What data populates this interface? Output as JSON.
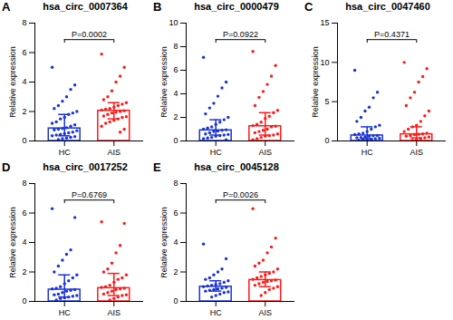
{
  "chart_data": [
    {
      "type": "bar",
      "panel": "A",
      "title": "hsa_circ_0007364",
      "y_label": "Relative expression",
      "categories": [
        "HC",
        "AIS"
      ],
      "values": [
        0.85,
        2.05
      ],
      "colors": [
        "#1a33d6",
        "#ff1a1a"
      ],
      "error_low": [
        0.35,
        1.5
      ],
      "error_high": [
        1.8,
        2.6
      ],
      "points": [
        [
          5.0,
          3.8,
          3.5,
          3.0,
          2.7,
          2.4,
          2.2,
          2.0,
          1.9,
          1.8,
          1.6,
          1.5,
          1.3,
          1.2,
          1.1,
          1.0,
          0.9,
          0.85,
          0.8,
          0.75,
          0.7,
          0.6,
          0.55,
          0.5,
          0.45,
          0.4,
          0.35,
          0.3,
          0.25,
          0.2,
          0.15,
          0.1
        ],
        [
          5.9,
          5.0,
          4.4,
          4.0,
          3.4,
          3.0,
          2.8,
          2.6,
          2.5,
          2.4,
          2.3,
          2.2,
          2.15,
          2.1,
          2.05,
          2.0,
          1.95,
          1.9,
          1.8,
          1.7,
          1.65,
          1.6,
          1.5,
          1.4,
          1.3,
          1.2,
          1.0,
          0.8,
          0.6
        ]
      ],
      "annotation": "P=0.0002",
      "ylim": [
        0,
        8
      ],
      "yticks": [
        0,
        2,
        4,
        6,
        8
      ]
    },
    {
      "type": "bar",
      "panel": "B",
      "title": "hsa_circ_0000479",
      "y_label": "Relative expression",
      "categories": [
        "HC",
        "AIS"
      ],
      "values": [
        0.9,
        1.25
      ],
      "colors": [
        "#1a33d6",
        "#ff1a1a"
      ],
      "error_low": [
        0.5,
        0.5
      ],
      "error_high": [
        1.8,
        2.4
      ],
      "points": [
        [
          7.1,
          5.0,
          4.5,
          3.8,
          3.2,
          2.8,
          2.3,
          2.0,
          1.8,
          1.6,
          1.4,
          1.2,
          1.1,
          1.0,
          0.95,
          0.9,
          0.85,
          0.8,
          0.7,
          0.6,
          0.55,
          0.5,
          0.45,
          0.4,
          0.3,
          0.25,
          0.2,
          0.1
        ],
        [
          7.6,
          6.4,
          5.5,
          4.8,
          4.2,
          3.7,
          3.0,
          2.6,
          2.4,
          2.1,
          1.9,
          1.6,
          1.4,
          1.3,
          1.25,
          1.2,
          1.0,
          0.9,
          0.8,
          0.7,
          0.6,
          0.5,
          0.45,
          0.4,
          0.3,
          0.2,
          0.1
        ]
      ],
      "annotation": "P=0.0922",
      "ylim": [
        0,
        10
      ],
      "yticks": [
        0,
        2,
        4,
        6,
        8,
        10
      ]
    },
    {
      "type": "bar",
      "panel": "C",
      "title": "hsa_circ_0047460",
      "y_label": "Relative expression",
      "categories": [
        "HC",
        "AIS"
      ],
      "values": [
        0.7,
        0.85
      ],
      "colors": [
        "#1a33d6",
        "#ff1a1a"
      ],
      "error_low": [
        0.3,
        0.4
      ],
      "error_high": [
        1.8,
        1.8
      ],
      "points": [
        [
          9.0,
          6.2,
          5.5,
          4.3,
          3.8,
          3.0,
          2.5,
          2.0,
          1.8,
          1.5,
          1.2,
          1.0,
          0.9,
          0.8,
          0.7,
          0.65,
          0.6,
          0.5,
          0.45,
          0.4,
          0.35,
          0.3,
          0.25,
          0.2,
          0.15,
          0.1
        ],
        [
          10.0,
          9.2,
          8.2,
          7.5,
          6.2,
          5.5,
          4.5,
          3.8,
          3.2,
          2.5,
          2.0,
          1.8,
          1.5,
          1.2,
          1.0,
          0.9,
          0.85,
          0.8,
          0.7,
          0.6,
          0.5,
          0.4,
          0.3,
          0.2,
          0.1
        ]
      ],
      "annotation": "P=0.4371",
      "ylim": [
        0,
        15
      ],
      "yticks": [
        0,
        5,
        10,
        15
      ]
    },
    {
      "type": "bar",
      "panel": "D",
      "title": "hsa_circ_0017252",
      "y_label": "Relative expression",
      "categories": [
        "HC",
        "AIS"
      ],
      "values": [
        0.8,
        0.9
      ],
      "colors": [
        "#1a33d6",
        "#ff1a1a"
      ],
      "error_low": [
        0.3,
        0.4
      ],
      "error_high": [
        1.8,
        1.9
      ],
      "points": [
        [
          6.3,
          5.7,
          3.5,
          3.2,
          2.8,
          2.4,
          2.0,
          1.8,
          1.6,
          1.4,
          1.2,
          1.0,
          0.9,
          0.85,
          0.8,
          0.75,
          0.7,
          0.6,
          0.5,
          0.45,
          0.4,
          0.35,
          0.3,
          0.25,
          0.2,
          0.1
        ],
        [
          5.4,
          5.3,
          3.8,
          3.3,
          2.6,
          2.2,
          2.0,
          1.8,
          1.6,
          1.5,
          1.3,
          1.1,
          1.0,
          0.95,
          0.9,
          0.85,
          0.8,
          0.7,
          0.6,
          0.5,
          0.45,
          0.4,
          0.3,
          0.2,
          0.1
        ]
      ],
      "annotation": "P=0.6769",
      "ylim": [
        0,
        8
      ],
      "yticks": [
        0,
        2,
        4,
        6,
        8
      ]
    },
    {
      "type": "bar",
      "panel": "E",
      "title": "hsa_circ_0045128",
      "y_label": "Relative expression",
      "categories": [
        "HC",
        "AIS"
      ],
      "values": [
        1.0,
        1.45
      ],
      "colors": [
        "#1a33d6",
        "#ff1a1a"
      ],
      "error_low": [
        0.7,
        1.0
      ],
      "error_high": [
        1.4,
        2.0
      ],
      "points": [
        [
          3.9,
          2.9,
          2.2,
          2.0,
          1.8,
          1.6,
          1.5,
          1.4,
          1.3,
          1.2,
          1.15,
          1.1,
          1.05,
          1.0,
          0.95,
          0.9,
          0.85,
          0.8,
          0.75,
          0.7,
          0.65,
          0.6,
          0.5,
          0.4,
          0.3
        ],
        [
          6.3,
          4.3,
          3.7,
          3.3,
          2.8,
          2.6,
          2.4,
          2.2,
          2.0,
          1.9,
          1.8,
          1.7,
          1.6,
          1.5,
          1.45,
          1.4,
          1.35,
          1.3,
          1.2,
          1.1,
          1.0,
          0.9,
          0.8,
          0.6,
          0.4
        ]
      ],
      "annotation": "P=0.0026",
      "ylim": [
        0,
        8
      ],
      "yticks": [
        0,
        2,
        4,
        6,
        8
      ]
    }
  ]
}
